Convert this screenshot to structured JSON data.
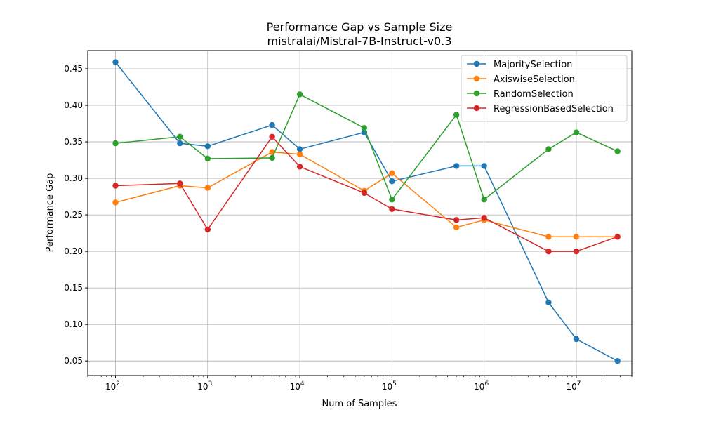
{
  "chart_data": {
    "type": "line",
    "title": "Performance Gap vs Sample Size",
    "subtitle": "mistralai/Mistral-7B-Instruct-v0.3",
    "xlabel": "Num of Samples",
    "ylabel": "Performance Gap",
    "x_scale": "log",
    "xlim": [
      50,
      40000000
    ],
    "ylim": [
      0.03,
      0.475
    ],
    "x_ticks": [
      {
        "value": 100,
        "base": "10",
        "exp": "2"
      },
      {
        "value": 1000,
        "base": "10",
        "exp": "3"
      },
      {
        "value": 10000,
        "base": "10",
        "exp": "4"
      },
      {
        "value": 100000,
        "base": "10",
        "exp": "5"
      },
      {
        "value": 1000000,
        "base": "10",
        "exp": "6"
      },
      {
        "value": 10000000,
        "base": "10",
        "exp": "7"
      }
    ],
    "y_ticks": [
      "0.05",
      "0.10",
      "0.15",
      "0.20",
      "0.25",
      "0.30",
      "0.35",
      "0.40",
      "0.45"
    ],
    "grid": true,
    "legend_position": "top-right",
    "x": [
      100,
      500,
      1000,
      5000,
      10000,
      50000,
      100000,
      500000,
      1000000,
      5000000,
      10000000,
      28000000
    ],
    "series": [
      {
        "name": "MajoritySelection",
        "color": "#1f77b4",
        "values": [
          0.459,
          0.348,
          0.344,
          0.373,
          0.34,
          0.363,
          0.296,
          0.317,
          0.317,
          0.13,
          0.08,
          0.05
        ]
      },
      {
        "name": "AxiswiseSelection",
        "color": "#ff7f0e",
        "values": [
          0.267,
          0.29,
          0.287,
          0.336,
          0.333,
          0.283,
          0.307,
          0.233,
          0.243,
          0.22,
          0.22,
          0.22
        ]
      },
      {
        "name": "RandomSelection",
        "color": "#2ca02c",
        "values": [
          0.348,
          0.357,
          0.327,
          0.328,
          0.415,
          0.369,
          0.271,
          0.387,
          0.271,
          0.34,
          0.363,
          0.337
        ]
      },
      {
        "name": "RegressionBasedSelection",
        "color": "#d62728",
        "values": [
          0.29,
          0.293,
          0.23,
          0.357,
          0.316,
          0.28,
          0.258,
          0.243,
          0.246,
          0.2,
          0.2,
          0.22
        ]
      }
    ]
  }
}
